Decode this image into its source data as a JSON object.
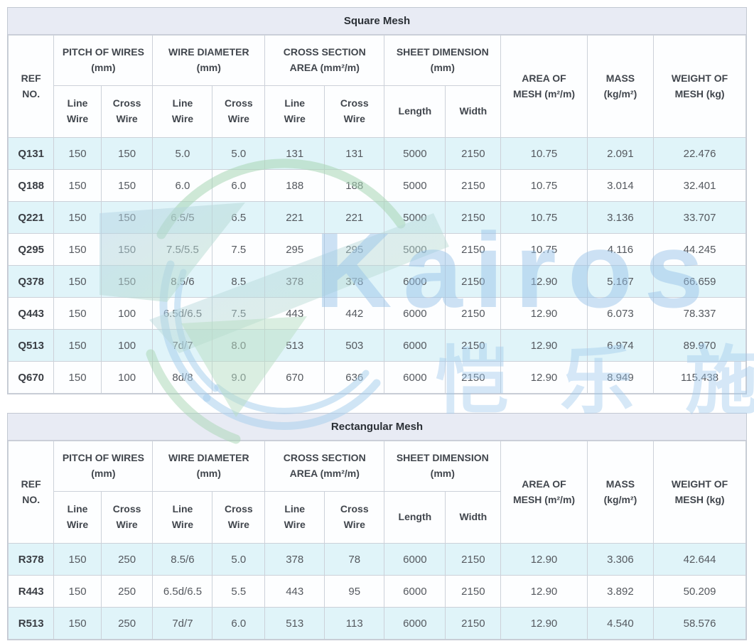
{
  "watermark": {
    "brand_text": "Kairos",
    "cjk_text": "恺乐施",
    "logo_icon": "kairos-k-logo",
    "brand_color": "#96c3e8",
    "logo_green": "#a7d6b4",
    "logo_blue": "#a9cfec"
  },
  "style_colors": {
    "title_bar_bg": "#e8ebf4",
    "stripe_row_bg": "#e0f4f9",
    "grid_border": "#ccd1d9",
    "header_text": "#41464d",
    "cell_text": "#55595f"
  },
  "header_template": {
    "ref": [
      "REF",
      "NO."
    ],
    "groups": [
      {
        "label": [
          "PITCH OF WIRES",
          "(mm)"
        ],
        "children": [
          [
            "Line",
            "Wire"
          ],
          [
            "Cross",
            "Wire"
          ]
        ]
      },
      {
        "label": [
          "WIRE DIAMETER",
          "(mm)"
        ],
        "children": [
          [
            "Line",
            "Wire"
          ],
          [
            "Cross",
            "Wire"
          ]
        ]
      },
      {
        "label": [
          "CROSS SECTION",
          "AREA (mm²/m)"
        ],
        "children": [
          [
            "Line",
            "Wire"
          ],
          [
            "Cross",
            "Wire"
          ]
        ]
      },
      {
        "label": [
          "SHEET DIMENSION",
          "(mm)"
        ],
        "children": [
          [
            "Length"
          ],
          [
            "Width"
          ]
        ]
      }
    ],
    "singles": [
      [
        "AREA OF",
        "MESH (m²/m)"
      ],
      [
        "MASS",
        "(kg/m²)"
      ],
      [
        "WEIGHT OF",
        "MESH (kg)"
      ]
    ]
  },
  "tables": [
    {
      "title": "Square Mesh",
      "rows": [
        [
          "Q131",
          "150",
          "150",
          "5.0",
          "5.0",
          "131",
          "131",
          "5000",
          "2150",
          "10.75",
          "2.091",
          "22.476"
        ],
        [
          "Q188",
          "150",
          "150",
          "6.0",
          "6.0",
          "188",
          "188",
          "5000",
          "2150",
          "10.75",
          "3.014",
          "32.401"
        ],
        [
          "Q221",
          "150",
          "150",
          "6.5/5",
          "6.5",
          "221",
          "221",
          "5000",
          "2150",
          "10.75",
          "3.136",
          "33.707"
        ],
        [
          "Q295",
          "150",
          "150",
          "7.5/5.5",
          "7.5",
          "295",
          "295",
          "5000",
          "2150",
          "10.75",
          "4.116",
          "44.245"
        ],
        [
          "Q378",
          "150",
          "150",
          "8.5/6",
          "8.5",
          "378",
          "378",
          "6000",
          "2150",
          "12.90",
          "5.167",
          "66.659"
        ],
        [
          "Q443",
          "150",
          "100",
          "6.5d/6.5",
          "7.5",
          "443",
          "442",
          "6000",
          "2150",
          "12.90",
          "6.073",
          "78.337"
        ],
        [
          "Q513",
          "150",
          "100",
          "7d/7",
          "8.0",
          "513",
          "503",
          "6000",
          "2150",
          "12.90",
          "6.974",
          "89.970"
        ],
        [
          "Q670",
          "150",
          "100",
          "8d/8",
          "9.0",
          "670",
          "636",
          "6000",
          "2150",
          "12.90",
          "8.949",
          "115.438"
        ]
      ]
    },
    {
      "title": "Rectangular Mesh",
      "rows": [
        [
          "R378",
          "150",
          "250",
          "8.5/6",
          "5.0",
          "378",
          "78",
          "6000",
          "2150",
          "12.90",
          "3.306",
          "42.644"
        ],
        [
          "R443",
          "150",
          "250",
          "6.5d/6.5",
          "5.5",
          "443",
          "95",
          "6000",
          "2150",
          "12.90",
          "3.892",
          "50.209"
        ],
        [
          "R513",
          "150",
          "250",
          "7d/7",
          "6.0",
          "513",
          "113",
          "6000",
          "2150",
          "12.90",
          "4.540",
          "58.576"
        ]
      ]
    }
  ]
}
